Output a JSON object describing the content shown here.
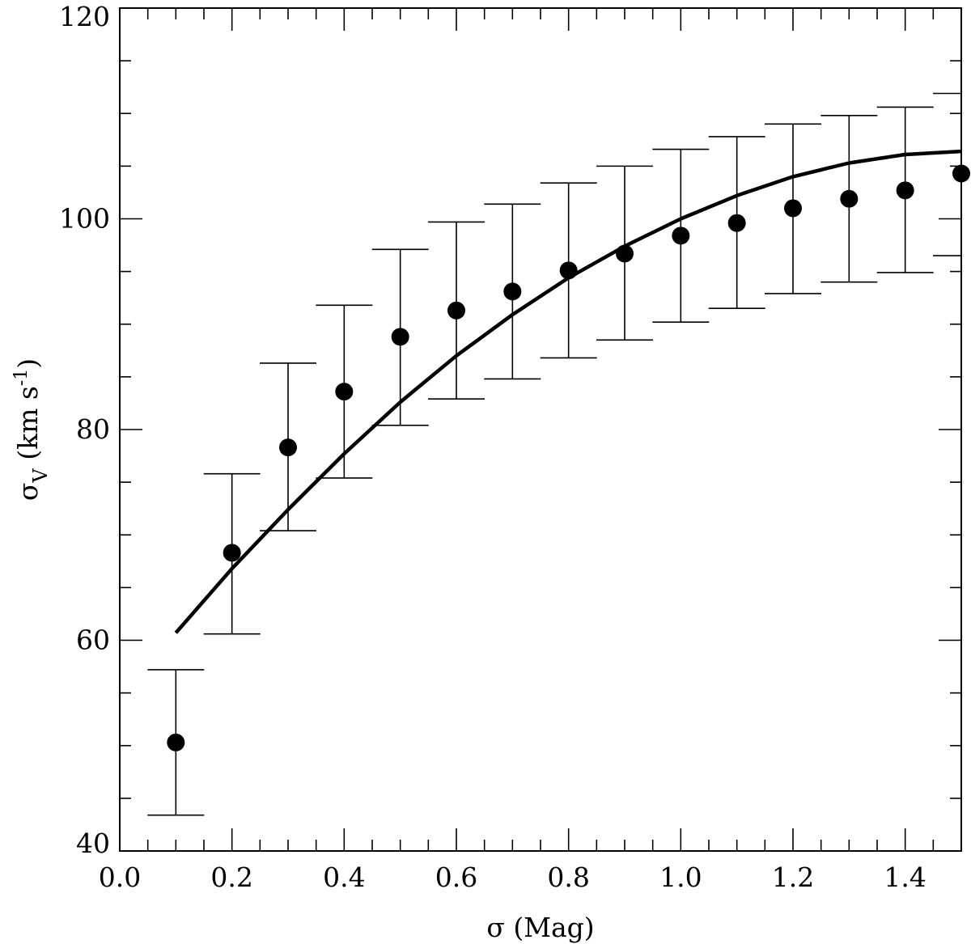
{
  "chart_data": {
    "type": "scatter",
    "xlabel": "σ (Mag)",
    "ylabel": {
      "main": "σ",
      "sub": "V",
      "unit_open": " (km s",
      "unit_sup": "-1",
      "unit_close": ")"
    },
    "xlim": [
      0.0,
      1.5
    ],
    "ylim": [
      40,
      120
    ],
    "x_ticks": [
      0.0,
      0.2,
      0.4,
      0.6,
      0.8,
      1.0,
      1.2,
      1.4
    ],
    "x_tick_labels": [
      "0.0",
      "0.2",
      "0.4",
      "0.6",
      "0.8",
      "1.0",
      "1.2",
      "1.4"
    ],
    "y_ticks": [
      40,
      60,
      80,
      100,
      120
    ],
    "y_tick_labels": [
      "40",
      "60",
      "80",
      "100",
      "120"
    ],
    "grid": false,
    "series": [
      {
        "type": "scatter_errorbar",
        "color": "#000000",
        "points": [
          {
            "x": 0.1,
            "y": 50.3,
            "ylow": 43.4,
            "yhigh": 57.2
          },
          {
            "x": 0.2,
            "y": 68.3,
            "ylow": 60.6,
            "yhigh": 75.8
          },
          {
            "x": 0.3,
            "y": 78.3,
            "ylow": 70.4,
            "yhigh": 86.3
          },
          {
            "x": 0.4,
            "y": 83.6,
            "ylow": 75.4,
            "yhigh": 91.8
          },
          {
            "x": 0.5,
            "y": 88.8,
            "ylow": 80.4,
            "yhigh": 97.1
          },
          {
            "x": 0.6,
            "y": 91.3,
            "ylow": 82.9,
            "yhigh": 99.7
          },
          {
            "x": 0.7,
            "y": 93.1,
            "ylow": 84.8,
            "yhigh": 101.4
          },
          {
            "x": 0.8,
            "y": 95.1,
            "ylow": 86.8,
            "yhigh": 103.4
          },
          {
            "x": 0.9,
            "y": 96.7,
            "ylow": 88.5,
            "yhigh": 105.0
          },
          {
            "x": 1.0,
            "y": 98.4,
            "ylow": 90.2,
            "yhigh": 106.6
          },
          {
            "x": 1.1,
            "y": 99.6,
            "ylow": 91.5,
            "yhigh": 107.8
          },
          {
            "x": 1.2,
            "y": 101.0,
            "ylow": 92.9,
            "yhigh": 109.0
          },
          {
            "x": 1.3,
            "y": 101.9,
            "ylow": 94.0,
            "yhigh": 109.8
          },
          {
            "x": 1.4,
            "y": 102.7,
            "ylow": 94.9,
            "yhigh": 110.6
          },
          {
            "x": 1.5,
            "y": 104.3,
            "ylow": 96.5,
            "yhigh": 111.9
          }
        ]
      },
      {
        "type": "line",
        "color": "#000000",
        "x": [
          0.1,
          0.2,
          0.3,
          0.4,
          0.5,
          0.6,
          0.7,
          0.8,
          0.9,
          1.0,
          1.1,
          1.2,
          1.3,
          1.4,
          1.5
        ],
        "y": [
          60.7,
          66.8,
          72.4,
          77.7,
          82.6,
          87.0,
          90.9,
          94.4,
          97.4,
          100.0,
          102.2,
          104.0,
          105.3,
          106.1,
          106.4
        ]
      }
    ]
  }
}
